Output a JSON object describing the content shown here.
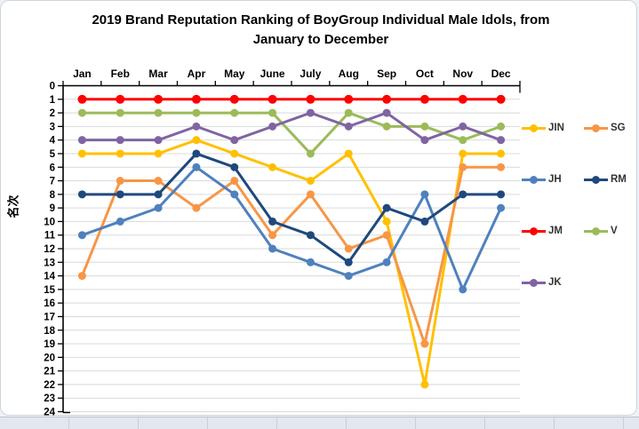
{
  "chart_data": {
    "type": "line",
    "title": "2019 Brand Reputation Ranking of BoyGroup Individual Male Idols, from January to December",
    "title_lines": {
      "line1": "2019 Brand Reputation Ranking of BoyGroup Individual Male Idols, from",
      "line2": "January to December"
    },
    "xlabel": "",
    "ylabel": "名次",
    "categories": [
      "Jan",
      "Feb",
      "Mar",
      "Apr",
      "May",
      "June",
      "July",
      "Aug",
      "Sep",
      "Oct",
      "Nov",
      "Dec"
    ],
    "y_axis": {
      "min": 0,
      "max": 24,
      "tick_step": 1,
      "inverted": true,
      "position": "left"
    },
    "x_axis_position": "top",
    "grid": true,
    "gridline_color": "#D9D9D9",
    "axis_color": "#000000",
    "legend_position": "right",
    "legend_columns": 2,
    "legend_order": [
      "JIN",
      "SG",
      "JH",
      "RM",
      "JM",
      "V",
      "JK"
    ],
    "series": [
      {
        "name": "JIN",
        "color": "#FFC000",
        "values": [
          5,
          5,
          5,
          4,
          5,
          6,
          7,
          5,
          10,
          22,
          5,
          5
        ]
      },
      {
        "name": "SG",
        "color": "#F79646",
        "values": [
          14,
          7,
          7,
          9,
          7,
          11,
          8,
          12,
          11,
          19,
          6,
          6
        ]
      },
      {
        "name": "JH",
        "color": "#4F81BD",
        "values": [
          11,
          10,
          9,
          6,
          8,
          12,
          13,
          14,
          13,
          8,
          15,
          9
        ]
      },
      {
        "name": "RM",
        "color": "#1F497D",
        "values": [
          8,
          8,
          8,
          5,
          6,
          10,
          11,
          13,
          9,
          10,
          8,
          8
        ]
      },
      {
        "name": "JM",
        "color": "#FF0000",
        "values": [
          1,
          1,
          1,
          1,
          1,
          1,
          1,
          1,
          1,
          1,
          1,
          1
        ]
      },
      {
        "name": "V",
        "color": "#9BBB59",
        "values": [
          2,
          2,
          2,
          2,
          2,
          2,
          5,
          2,
          3,
          3,
          4,
          3
        ]
      },
      {
        "name": "JK",
        "color": "#8064A2",
        "values": [
          4,
          4,
          4,
          3,
          4,
          3,
          2,
          3,
          2,
          4,
          3,
          4
        ]
      }
    ]
  }
}
